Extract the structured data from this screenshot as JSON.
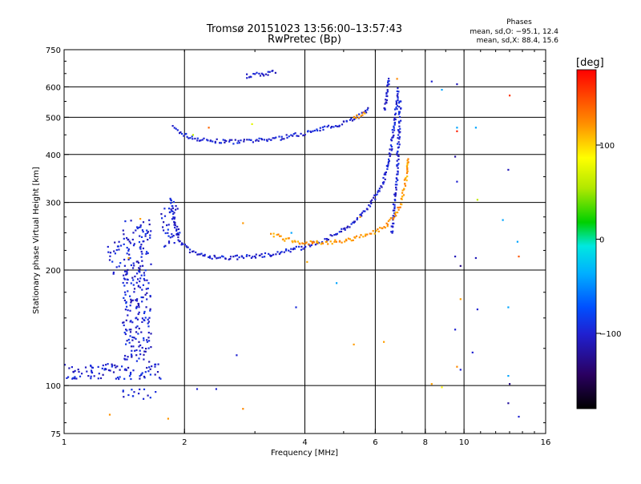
{
  "chart_data": {
    "type": "scatter",
    "title": "Tromsø 20151023 13:56:00–13:57:43",
    "subtitle": "RwPretec (Bp)",
    "info": {
      "heading": "Phases",
      "line1": "mean, sd,O: −95.1, 12.4",
      "line2": "mean, sd,X:  88.4, 15.6"
    },
    "xlabel": "Frequency [MHz]",
    "ylabel": "Stationary phase Virtual Height [km]",
    "x_scale": "log",
    "y_scale": "log",
    "xlim": [
      1,
      16
    ],
    "ylim": [
      75,
      750
    ],
    "x_ticks": [
      {
        "v": 1,
        "label": "1"
      },
      {
        "v": 2,
        "label": "2"
      },
      {
        "v": 4,
        "label": "4"
      },
      {
        "v": 6,
        "label": "6"
      },
      {
        "v": 8,
        "label": "8"
      },
      {
        "v": 10,
        "label": "10"
      },
      {
        "v": 16,
        "label": "16"
      }
    ],
    "y_ticks": [
      {
        "v": 75,
        "label": "75"
      },
      {
        "v": 100,
        "label": "100"
      },
      {
        "v": 200,
        "label": "200"
      },
      {
        "v": 300,
        "label": "300"
      },
      {
        "v": 400,
        "label": "400"
      },
      {
        "v": 500,
        "label": "500"
      },
      {
        "v": 600,
        "label": "600"
      },
      {
        "v": 750,
        "label": "750"
      }
    ],
    "x_grid": [
      2,
      4,
      6,
      8,
      10
    ],
    "y_grid": [
      100,
      200,
      300,
      400,
      500,
      600
    ],
    "colorbar": {
      "label": "[deg]",
      "range": [
        -180,
        180
      ],
      "ticks": [
        {
          "v": 100,
          "label": "100"
        },
        {
          "v": 0,
          "label": "0"
        },
        {
          "v": -100,
          "label": "−100"
        }
      ]
    },
    "traces": [
      {
        "phase": -100,
        "points": [
          [
            1.88,
            470
          ],
          [
            1.95,
            455
          ],
          [
            2.05,
            445
          ],
          [
            2.2,
            437
          ],
          [
            2.4,
            433
          ],
          [
            2.7,
            432
          ],
          [
            3.0,
            434
          ],
          [
            3.4,
            440
          ],
          [
            3.8,
            450
          ],
          [
            4.3,
            462
          ],
          [
            4.8,
            478
          ],
          [
            5.3,
            497
          ],
          [
            5.6,
            512
          ],
          [
            5.8,
            530
          ]
        ]
      },
      {
        "phase": -100,
        "points": [
          [
            2.85,
            640
          ],
          [
            3.0,
            645
          ],
          [
            3.2,
            650
          ],
          [
            3.4,
            655
          ]
        ]
      },
      {
        "phase": -100,
        "points": [
          [
            1.85,
            305
          ],
          [
            1.87,
            275
          ],
          [
            1.9,
            255
          ],
          [
            1.95,
            238
          ],
          [
            2.05,
            225
          ],
          [
            2.2,
            218
          ],
          [
            2.5,
            215
          ],
          [
            2.8,
            216
          ],
          [
            3.2,
            219
          ],
          [
            3.6,
            224
          ],
          [
            4.0,
            230
          ],
          [
            4.4,
            238
          ],
          [
            4.8,
            248
          ],
          [
            5.1,
            258
          ],
          [
            5.4,
            272
          ],
          [
            5.7,
            290
          ],
          [
            6.0,
            310
          ],
          [
            6.2,
            330
          ],
          [
            6.35,
            355
          ],
          [
            6.5,
            390
          ],
          [
            6.6,
            430
          ],
          [
            6.7,
            480
          ],
          [
            6.78,
            540
          ],
          [
            6.85,
            600
          ]
        ]
      },
      {
        "phase": -100,
        "points": [
          [
            6.6,
            250
          ],
          [
            6.7,
            300
          ],
          [
            6.8,
            360
          ],
          [
            6.85,
            420
          ],
          [
            6.9,
            490
          ],
          [
            6.92,
            560
          ]
        ]
      },
      {
        "phase": -100,
        "points": [
          [
            6.3,
            520
          ],
          [
            6.4,
            560
          ],
          [
            6.45,
            600
          ],
          [
            6.5,
            640
          ]
        ]
      },
      {
        "phase": 120,
        "points": [
          [
            3.3,
            248
          ],
          [
            3.6,
            240
          ],
          [
            4.0,
            236
          ],
          [
            4.5,
            235
          ],
          [
            5.0,
            238
          ],
          [
            5.5,
            244
          ],
          [
            6.0,
            252
          ],
          [
            6.4,
            262
          ],
          [
            6.7,
            278
          ],
          [
            6.95,
            300
          ],
          [
            7.1,
            330
          ],
          [
            7.2,
            360
          ],
          [
            7.25,
            395
          ]
        ]
      },
      {
        "phase": 120,
        "points": [
          [
            5.3,
            495
          ],
          [
            5.5,
            505
          ],
          [
            5.7,
            512
          ]
        ]
      }
    ],
    "spread_clusters": [
      {
        "phase": -100,
        "x_range": [
          1.4,
          1.65
        ],
        "y_range": [
          115,
          270
        ],
        "count": 240
      },
      {
        "phase": -100,
        "x_range": [
          1.28,
          1.4
        ],
        "y_range": [
          195,
          240
        ],
        "count": 20
      },
      {
        "phase": -100,
        "x_range": [
          1.0,
          1.75
        ],
        "y_range": [
          104,
          114
        ],
        "count": 90
      },
      {
        "phase": -100,
        "x_range": [
          1.4,
          1.7
        ],
        "y_range": [
          92,
          98
        ],
        "count": 15
      },
      {
        "phase": -100,
        "x_range": [
          1.75,
          1.95
        ],
        "y_range": [
          230,
          310
        ],
        "count": 40
      }
    ],
    "points": [
      {
        "x": 1.45,
        "y": 215,
        "phase": 115
      },
      {
        "x": 1.55,
        "y": 272,
        "phase": 118
      },
      {
        "x": 1.82,
        "y": 82,
        "phase": 120
      },
      {
        "x": 1.3,
        "y": 84,
        "phase": 122
      },
      {
        "x": 2.1,
        "y": 450,
        "phase": 60
      },
      {
        "x": 2.95,
        "y": 480,
        "phase": 75
      },
      {
        "x": 2.3,
        "y": 470,
        "phase": 140
      },
      {
        "x": 2.8,
        "y": 265,
        "phase": 120
      },
      {
        "x": 2.8,
        "y": 87,
        "phase": 125
      },
      {
        "x": 2.7,
        "y": 120,
        "phase": -100
      },
      {
        "x": 2.15,
        "y": 98,
        "phase": -100
      },
      {
        "x": 2.4,
        "y": 98,
        "phase": -100
      },
      {
        "x": 3.8,
        "y": 160,
        "phase": -95
      },
      {
        "x": 4.8,
        "y": 185,
        "phase": -40
      },
      {
        "x": 5.3,
        "y": 128,
        "phase": 118
      },
      {
        "x": 4.05,
        "y": 210,
        "phase": 115
      },
      {
        "x": 3.7,
        "y": 250,
        "phase": -40
      },
      {
        "x": 5.5,
        "y": 275,
        "phase": 120
      },
      {
        "x": 6.8,
        "y": 630,
        "phase": 125
      },
      {
        "x": 8.3,
        "y": 620,
        "phase": -100
      },
      {
        "x": 8.8,
        "y": 590,
        "phase": -40
      },
      {
        "x": 9.6,
        "y": 610,
        "phase": -110
      },
      {
        "x": 9.6,
        "y": 470,
        "phase": -40
      },
      {
        "x": 9.6,
        "y": 460,
        "phase": 168
      },
      {
        "x": 9.5,
        "y": 395,
        "phase": -120
      },
      {
        "x": 9.6,
        "y": 340,
        "phase": -100
      },
      {
        "x": 10.7,
        "y": 470,
        "phase": -40
      },
      {
        "x": 10.8,
        "y": 305,
        "phase": 60
      },
      {
        "x": 13.0,
        "y": 570,
        "phase": 160
      },
      {
        "x": 12.9,
        "y": 365,
        "phase": -110
      },
      {
        "x": 12.5,
        "y": 270,
        "phase": -40
      },
      {
        "x": 13.6,
        "y": 237,
        "phase": -40
      },
      {
        "x": 13.7,
        "y": 217,
        "phase": 145
      },
      {
        "x": 9.5,
        "y": 217,
        "phase": -110
      },
      {
        "x": 9.8,
        "y": 205,
        "phase": -130
      },
      {
        "x": 10.7,
        "y": 215,
        "phase": -110
      },
      {
        "x": 9.8,
        "y": 168,
        "phase": 118
      },
      {
        "x": 10.8,
        "y": 158,
        "phase": -100
      },
      {
        "x": 12.9,
        "y": 160,
        "phase": -40
      },
      {
        "x": 9.5,
        "y": 140,
        "phase": -100
      },
      {
        "x": 10.5,
        "y": 122,
        "phase": -100
      },
      {
        "x": 9.6,
        "y": 112,
        "phase": 125
      },
      {
        "x": 9.8,
        "y": 110,
        "phase": -100
      },
      {
        "x": 12.9,
        "y": 106,
        "phase": -40
      },
      {
        "x": 13.0,
        "y": 101,
        "phase": -130
      },
      {
        "x": 8.3,
        "y": 101,
        "phase": 118
      },
      {
        "x": 8.8,
        "y": 99,
        "phase": 90
      },
      {
        "x": 12.9,
        "y": 90,
        "phase": -120
      },
      {
        "x": 13.7,
        "y": 83,
        "phase": -100
      },
      {
        "x": 6.3,
        "y": 130,
        "phase": 118
      }
    ]
  }
}
